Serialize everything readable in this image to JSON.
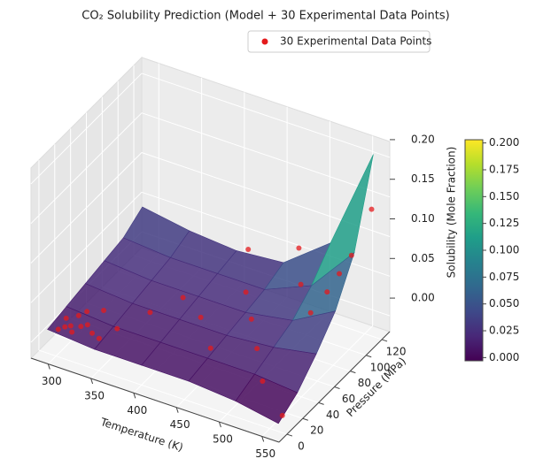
{
  "chart_data": {
    "type": "surface3d",
    "title": "CO₂ Solubility Prediction (Model + 30 Experimental Data Points)",
    "x_label": "Temperature (K)",
    "y_label": "Pressure (MPa)",
    "z_label": "Solubility (Mole Fraction)",
    "xlim": [
      280,
      570
    ],
    "xticks": [
      300,
      350,
      400,
      450,
      500,
      550
    ],
    "ylim": [
      -10,
      130
    ],
    "yticks": [
      0,
      20,
      40,
      60,
      80,
      100,
      120
    ],
    "zlim": [
      -0.02,
      0.22
    ],
    "zticks": [
      {
        "value": 0,
        "label": "0.00"
      },
      {
        "value": 0.05,
        "label": "0.05"
      },
      {
        "value": 0.1,
        "label": "0.10"
      },
      {
        "value": 0.15,
        "label": "0.15"
      },
      {
        "value": 0.2,
        "label": "0.20"
      }
    ],
    "colormap": "viridis",
    "clim": [
      -0.003,
      0.203
    ],
    "cticks": [
      {
        "value": 0,
        "label": "0.000"
      },
      {
        "value": 0.025,
        "label": "0.025"
      },
      {
        "value": 0.05,
        "label": "0.050"
      },
      {
        "value": 0.075,
        "label": "0.075"
      },
      {
        "value": 0.1,
        "label": "0.100"
      },
      {
        "value": 0.125,
        "label": "0.125"
      },
      {
        "value": 0.15,
        "label": "0.150"
      },
      {
        "value": 0.175,
        "label": "0.175"
      },
      {
        "value": 0.2,
        "label": "0.200"
      }
    ],
    "grid": true,
    "surface": {
      "x": [
        290,
        345,
        400,
        455,
        510,
        560
      ],
      "y": [
        0,
        24,
        48,
        72,
        96,
        120
      ],
      "z": [
        [
          0.01,
          0.005,
          0.005,
          0.005,
          0.0,
          -0.01
        ],
        [
          0.015,
          0.01,
          0.01,
          0.01,
          0.01,
          0.005
        ],
        [
          0.02,
          0.015,
          0.015,
          0.015,
          0.02,
          0.03
        ],
        [
          0.025,
          0.02,
          0.02,
          0.02,
          0.03,
          0.06
        ],
        [
          0.03,
          0.025,
          0.025,
          0.025,
          0.05,
          0.11
        ],
        [
          0.045,
          0.035,
          0.03,
          0.035,
          0.08,
          0.21
        ]
      ]
    },
    "series": [
      {
        "name": "30 Experimental Data Points",
        "color": "#e41a1c",
        "x": [
          298,
          303,
          308,
          313,
          318,
          323,
          298,
          308,
          333,
          343,
          313,
          328,
          353,
          373,
          393,
          423,
          453,
          473,
          498,
          523,
          543,
          553,
          558,
          548,
          533,
          503,
          423,
          473,
          448,
          560
        ],
        "y": [
          5,
          8,
          10,
          6,
          12,
          15,
          15,
          20,
          10,
          8,
          25,
          30,
          20,
          40,
          60,
          50,
          30,
          60,
          40,
          20,
          80,
          100,
          120,
          90,
          70,
          90,
          110,
          120,
          80,
          5
        ],
        "z": [
          0.008,
          0.01,
          0.011,
          0.009,
          0.012,
          0.013,
          0.012,
          0.014,
          0.011,
          0.01,
          0.016,
          0.018,
          0.014,
          0.022,
          0.028,
          0.024,
          0.016,
          0.03,
          0.022,
          0.01,
          0.07,
          0.1,
          0.14,
          0.085,
          0.05,
          0.055,
          0.05,
          0.06,
          0.035,
          -0.005
        ]
      }
    ],
    "legend_position": "upper right"
  }
}
